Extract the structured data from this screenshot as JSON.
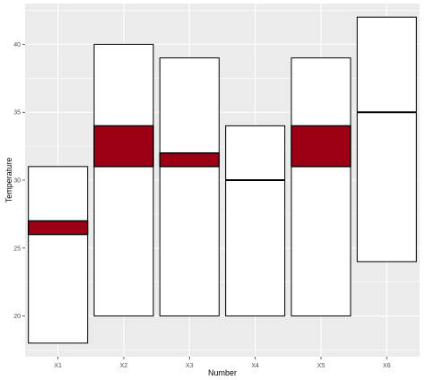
{
  "chart_data": {
    "type": "bar",
    "subtype": "range-bar-with-band",
    "title": "",
    "xlabel": "Number",
    "ylabel": "Temperature",
    "ylim": [
      17,
      43
    ],
    "yticks": [
      20,
      25,
      30,
      35,
      40
    ],
    "categories": [
      "X1",
      "X2",
      "X3",
      "X4",
      "X5",
      "X6"
    ],
    "series": [
      {
        "name": "",
        "min": 18,
        "max": 31,
        "band_low": 26,
        "band_high": 27
      },
      {
        "name": "",
        "min": 20,
        "max": 40,
        "band_low": 31,
        "band_high": 34
      },
      {
        "name": "",
        "min": 20,
        "max": 39,
        "band_low": 31,
        "band_high": 32
      },
      {
        "name": "",
        "min": 20,
        "max": 34,
        "band_low": 30,
        "band_high": 30
      },
      {
        "name": "",
        "min": 20,
        "max": 39,
        "band_low": 31,
        "band_high": 34
      },
      {
        "name": "",
        "min": 24,
        "max": 42,
        "band_low": 35,
        "band_high": 35
      }
    ],
    "colors": {
      "panel": "#ebebeb",
      "grid": "#ffffff",
      "bar_fill": "#ffffff",
      "bar_stroke": "#000000",
      "band_fill": "#9b0015"
    },
    "grid": true,
    "legend": "none"
  }
}
